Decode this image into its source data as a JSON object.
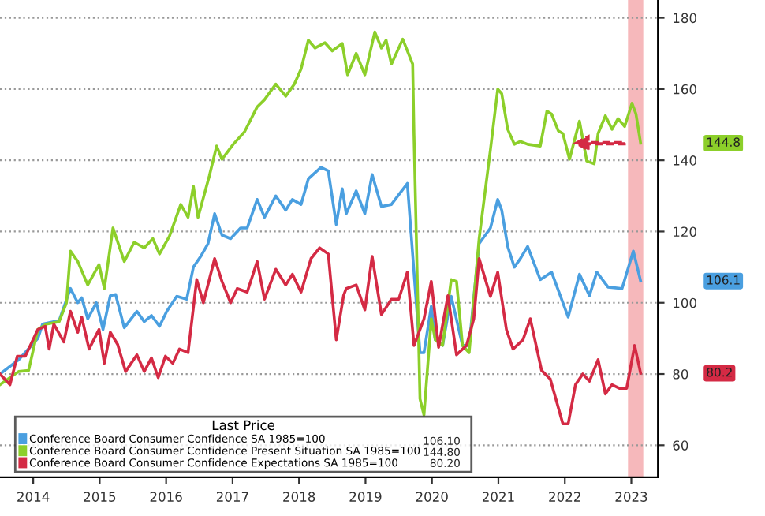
{
  "chart_data": {
    "type": "line",
    "series": [
      {
        "name": "Conference Board Consumer Confidence SA 1985=100",
        "color": "#4a9fe0",
        "x": [
          2014.0,
          2014.28,
          2014.57,
          2014.64,
          2014.89,
          2015.06,
          2015.17,
          2015.23,
          2015.32,
          2015.45,
          2015.55,
          2015.66,
          2015.74,
          2015.87,
          2016.06,
          2016.17,
          2016.28,
          2016.4,
          2016.51,
          2016.66,
          2016.81,
          2016.91,
          2017.02,
          2017.13,
          2017.23,
          2017.34,
          2017.47,
          2017.62,
          2017.72,
          2017.87,
          2017.98,
          2018.15,
          2018.3,
          2018.4,
          2018.53,
          2018.64,
          2018.83,
          2018.94,
          2019.06,
          2019.15,
          2019.21,
          2019.36,
          2019.49,
          2019.6,
          2019.74,
          2019.89,
          2020.13,
          2020.32,
          2020.38,
          2020.49,
          2020.55,
          2020.66,
          2020.79,
          2020.96,
          2021.06,
          2021.21,
          2021.38,
          2021.49,
          2021.55,
          2021.64,
          2021.74,
          2021.83,
          2021.94,
          2022.13,
          2022.3,
          2022.55,
          2022.72,
          2022.87,
          2022.98,
          2023.15,
          2023.36,
          2023.53,
          2023.64
        ],
        "values": [
          80,
          84,
          90,
          94,
          95,
          104,
          100,
          101.4,
          95.5,
          100,
          92.5,
          102,
          102.3,
          93,
          97.6,
          94.7,
          96.4,
          93.4,
          97.6,
          101.8,
          101,
          110,
          113,
          116.6,
          125,
          119,
          118,
          121,
          121,
          129,
          124,
          130,
          126,
          129,
          127.6,
          134.8,
          138,
          137,
          122,
          132,
          125,
          131.4,
          125,
          136,
          127,
          127.6,
          133.5,
          86,
          86,
          99,
          89.6,
          88,
          101.8,
          88,
          88,
          116.6,
          121,
          129,
          126,
          115.8,
          110,
          112.4,
          115.8,
          106.5,
          108.6,
          96,
          108,
          102,
          108.6,
          104.4,
          104,
          114.5,
          106.1
        ]
      },
      {
        "name": "Conference Board Consumer Confidence Present Situation SA 1985=100",
        "color": "#8ccf2a",
        "x": [
          2014.0,
          2014.28,
          2014.43,
          2014.57,
          2014.7,
          2014.89,
          2015.0,
          2015.06,
          2015.17,
          2015.32,
          2015.49,
          2015.57,
          2015.7,
          2015.87,
          2016.02,
          2016.17,
          2016.3,
          2016.4,
          2016.55,
          2016.72,
          2016.83,
          2016.91,
          2016.98,
          2017.15,
          2017.26,
          2017.34,
          2017.51,
          2017.68,
          2017.87,
          2017.98,
          2018.15,
          2018.3,
          2018.43,
          2018.53,
          2018.64,
          2018.74,
          2018.89,
          2019.0,
          2019.15,
          2019.23,
          2019.36,
          2019.49,
          2019.64,
          2019.74,
          2019.81,
          2019.89,
          2020.06,
          2020.21,
          2020.23,
          2020.32,
          2020.38,
          2020.49,
          2020.55,
          2020.66,
          2020.79,
          2020.87,
          2020.96,
          2021.06,
          2021.21,
          2021.38,
          2021.49,
          2021.55,
          2021.64,
          2021.74,
          2021.83,
          2021.94,
          2022.13,
          2022.23,
          2022.3,
          2022.4,
          2022.47,
          2022.57,
          2022.72,
          2022.83,
          2022.94,
          2023.0,
          2023.11,
          2023.21,
          2023.3,
          2023.4,
          2023.51,
          2023.57,
          2023.64
        ],
        "values": [
          77,
          80.7,
          81,
          92.5,
          94,
          94.7,
          100,
          114.5,
          111.6,
          105,
          110.7,
          104,
          121,
          111.6,
          117,
          115.4,
          118,
          113.7,
          118.7,
          127.6,
          124,
          132.7,
          124,
          135.6,
          144,
          140.3,
          144.5,
          148,
          155,
          157,
          161.4,
          158,
          161.4,
          165.6,
          173.7,
          171.5,
          173,
          170.7,
          172.8,
          164,
          170,
          164,
          176,
          171.5,
          173.7,
          167,
          174,
          167,
          147,
          73,
          68.5,
          95.5,
          89.6,
          88,
          106.5,
          106,
          88,
          86,
          118,
          143,
          160,
          158.7,
          148.7,
          144.5,
          145.3,
          144.5,
          144,
          153.8,
          153,
          148.3,
          147.5,
          140.3,
          151,
          139.8,
          139,
          147.5,
          152.5,
          148.7,
          151.7,
          149.5,
          156,
          153,
          144.8
        ]
      },
      {
        "name": "Conference Board Consumer Confidence Expectations SA 1985=100",
        "color": "#d42a44",
        "x": [
          2014.0,
          2014.15,
          2014.26,
          2014.38,
          2014.57,
          2014.68,
          2014.74,
          2014.81,
          2014.96,
          2015.06,
          2015.17,
          2015.23,
          2015.34,
          2015.49,
          2015.57,
          2015.66,
          2015.77,
          2015.89,
          2016.06,
          2016.17,
          2016.28,
          2016.38,
          2016.49,
          2016.6,
          2016.7,
          2016.83,
          2016.96,
          2017.06,
          2017.23,
          2017.34,
          2017.47,
          2017.57,
          2017.72,
          2017.87,
          2017.98,
          2018.15,
          2018.3,
          2018.4,
          2018.53,
          2018.68,
          2018.81,
          2018.94,
          2019.06,
          2019.17,
          2019.21,
          2019.36,
          2019.49,
          2019.6,
          2019.74,
          2019.89,
          2020.0,
          2020.13,
          2020.23,
          2020.38,
          2020.49,
          2020.6,
          2020.74,
          2020.87,
          2021.02,
          2021.13,
          2021.21,
          2021.38,
          2021.49,
          2021.62,
          2021.72,
          2021.87,
          2021.98,
          2022.15,
          2022.28,
          2022.47,
          2022.55,
          2022.66,
          2022.77,
          2022.87,
          2023.0,
          2023.11,
          2023.21,
          2023.32,
          2023.43,
          2023.55,
          2023.64
        ],
        "values": [
          80,
          77,
          85,
          85,
          92.5,
          93.4,
          87,
          94,
          89,
          97.6,
          91.7,
          96,
          87,
          92.5,
          83,
          91.7,
          88.3,
          80.7,
          85.4,
          80.7,
          84.5,
          79,
          85,
          83,
          87,
          86,
          106.5,
          100,
          112.4,
          106,
          100,
          104,
          103,
          111.6,
          101,
          109.4,
          105,
          108,
          103,
          112.4,
          115.4,
          113.7,
          89.6,
          102,
          104,
          105,
          98,
          113,
          96.7,
          101,
          101,
          108.6,
          88,
          95.5,
          106,
          87.5,
          102,
          85.4,
          88,
          95.5,
          112.4,
          101.8,
          108.6,
          92.5,
          87,
          89.6,
          95.5,
          81,
          78.6,
          66,
          66,
          77,
          80,
          78,
          84,
          74.4,
          77,
          76,
          76,
          88,
          80.2
        ]
      }
    ],
    "xlim": [
      2014,
      2023.9
    ],
    "xticks": [
      {
        "value": 2014.5,
        "label": "2014"
      },
      {
        "value": 2015.5,
        "label": "2015"
      },
      {
        "value": 2016.5,
        "label": "2016"
      },
      {
        "value": 2017.5,
        "label": "2017"
      },
      {
        "value": 2018.5,
        "label": "2018"
      },
      {
        "value": 2019.5,
        "label": "2019"
      },
      {
        "value": 2020.5,
        "label": "2020"
      },
      {
        "value": 2021.5,
        "label": "2021"
      },
      {
        "value": 2022.5,
        "label": "2022"
      },
      {
        "value": 2023.5,
        "label": "2023"
      }
    ],
    "ylim": [
      51,
      185
    ],
    "yticks": [
      60,
      80,
      100,
      120,
      140,
      160,
      180
    ],
    "grid": "y",
    "legend": "bottom left",
    "legend_title": "Last Price",
    "bands": [
      {
        "axis": "x",
        "from": 2023.45,
        "to": 2023.68,
        "color": "#f4a6aa"
      }
    ],
    "annotations": [
      "106.10",
      "144.80",
      "80.20",
      "106.1",
      "144.8",
      "80.2"
    ],
    "marker": "none",
    "line_style": "solid"
  }
}
